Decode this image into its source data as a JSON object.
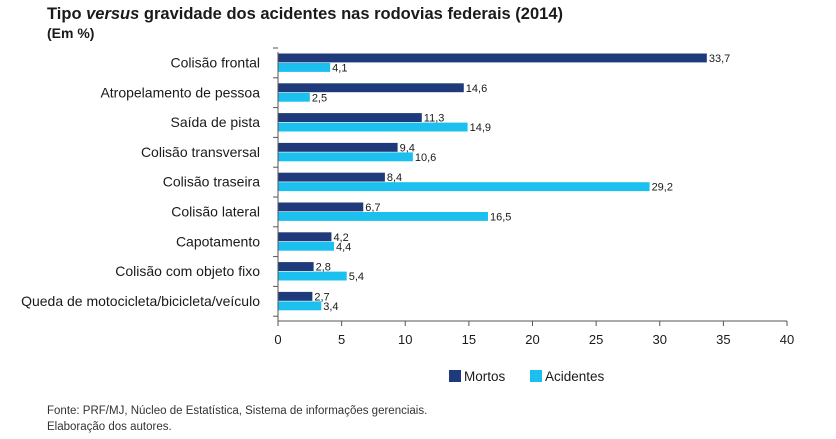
{
  "title": {
    "prefix": "Tipo ",
    "emphasis": "versus",
    "suffix": " gravidade dos acidentes nas rodovias federais (2014)"
  },
  "subtitle": "(Em %)",
  "source_lines": [
    "Fonte: PRF/MJ, Núcleo de Estatística, Sistema de informações gerenciais.",
    "Elaboração dos autores."
  ],
  "colors": {
    "Mortos": "#1f3a7a",
    "Acidentes": "#1cc0ef",
    "axis": "#555555"
  },
  "chart_data": {
    "type": "bar",
    "orientation": "horizontal",
    "categories": [
      "Colisão frontal",
      "Atropelamento de pessoa",
      "Saída de pista",
      "Colisão transversal",
      "Colisão traseira",
      "Colisão lateral",
      "Capotamento",
      "Colisão com objeto fixo",
      "Queda de motocicleta/bicicleta/veículo"
    ],
    "value_labels": {
      "Mortos": [
        "33,7",
        "14,6",
        "11,3",
        "9,4",
        "8,4",
        "6,7",
        "4,2",
        "2,8",
        "2,7"
      ],
      "Acidentes": [
        "4,1",
        "2,5",
        "14,9",
        "10,6",
        "29,2",
        "16,5",
        "4,4",
        "5,4",
        "3,4"
      ]
    },
    "series": [
      {
        "name": "Mortos",
        "values": [
          33.7,
          14.6,
          11.3,
          9.4,
          8.4,
          6.7,
          4.2,
          2.8,
          2.7
        ]
      },
      {
        "name": "Acidentes",
        "values": [
          4.1,
          2.5,
          14.9,
          10.6,
          29.2,
          16.5,
          4.4,
          5.4,
          3.4
        ]
      }
    ],
    "xlim": [
      0,
      40
    ],
    "xticks": [
      0,
      5,
      10,
      15,
      20,
      25,
      30,
      35,
      40
    ],
    "grid": false,
    "legend_position": "bottom"
  }
}
